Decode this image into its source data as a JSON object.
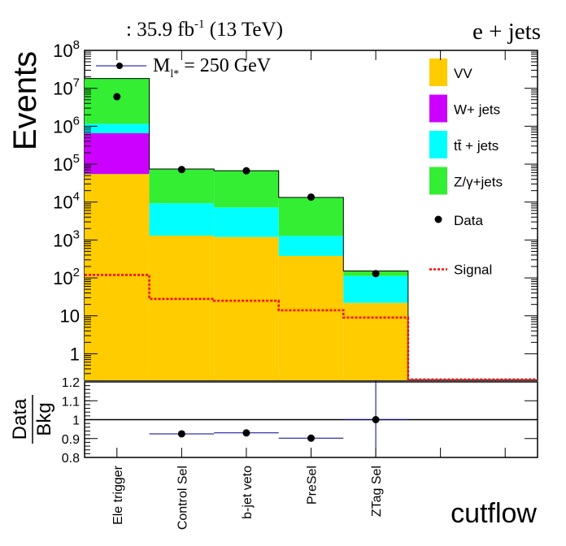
{
  "header": {
    "lumi_prefix": ": 35.9 fb",
    "lumi_exp": "-1",
    "lumi_suffix": " (13 TeV)",
    "channel": "e + jets"
  },
  "annotation": {
    "mass_label_main": "M",
    "mass_label_sub": "l*",
    "mass_label_value": " = 250 GeV"
  },
  "colors": {
    "VV": "#ffcc00",
    "W+ jets": "#cc00ff",
    "ttbar + jets": "#00ffff",
    "Z/gamma+jets": "#33ee33",
    "Signal": "#ff0000",
    "Data": "#000000",
    "errors": "#000099"
  },
  "legend": {
    "position": "top-right",
    "entries": [
      {
        "key": "VV",
        "label": "VV",
        "kind": "fill"
      },
      {
        "key": "W+ jets",
        "label": "W+ jets",
        "kind": "fill"
      },
      {
        "key": "ttbar + jets",
        "label": "tt̄ + jets",
        "kind": "fill"
      },
      {
        "key": "Z/gamma+jets",
        "label": "Z/γ+jets",
        "kind": "fill"
      },
      {
        "key": "Data",
        "label": "Data",
        "kind": "marker"
      },
      {
        "key": "Signal",
        "label": "Signal",
        "kind": "line"
      }
    ]
  },
  "chart_data": [
    {
      "type": "bar",
      "stacked": true,
      "yscale": "log",
      "ylabel": "Events",
      "ylim": [
        0.2,
        100000000
      ],
      "y_tick_labels": [
        "1",
        "10",
        "10^2",
        "10^3",
        "10^4",
        "10^5",
        "10^6",
        "10^7",
        "10^8"
      ],
      "categories": [
        "Ele trigger",
        "Control Sel",
        "b-jet veto",
        "PreSel",
        "ZTag Sel",
        "",
        ""
      ],
      "series": [
        {
          "name": "VV",
          "values": [
            55000,
            1300,
            1200,
            380,
            22,
            0,
            0
          ]
        },
        {
          "name": "W+ jets",
          "values": [
            600000,
            0,
            0,
            0,
            0,
            0,
            0
          ]
        },
        {
          "name": "tt̄ + jets",
          "values": [
            500000,
            8000,
            6000,
            900,
            90,
            0,
            0
          ]
        },
        {
          "name": "Z/γ+jets",
          "values": [
            17000000,
            65000,
            60000,
            12000,
            40,
            0,
            0
          ]
        }
      ],
      "signal": {
        "name": "Signal",
        "values": [
          120,
          28,
          25,
          14,
          9,
          0,
          0
        ]
      },
      "data": {
        "name": "Data",
        "values": [
          6000000,
          72000,
          67000,
          13500,
          130,
          null,
          null
        ]
      },
      "grid": false
    },
    {
      "type": "scatter",
      "ylabel_num": "Data",
      "ylabel_den": "Bkg",
      "xlabel": "cutflow",
      "ylim": [
        0.8,
        1.2
      ],
      "y_tick_labels": [
        "0.8",
        "0.9",
        "1",
        "1.1",
        "1.2"
      ],
      "reference_line": 1.0,
      "categories": [
        "Ele trigger",
        "Control Sel",
        "b-jet veto",
        "PreSel",
        "ZTag Sel",
        "",
        ""
      ],
      "values": [
        null,
        0.925,
        0.93,
        0.902,
        1.0,
        null,
        null
      ],
      "errors": [
        null,
        0.003,
        0.003,
        0.005,
        0.2,
        null,
        null
      ]
    }
  ]
}
